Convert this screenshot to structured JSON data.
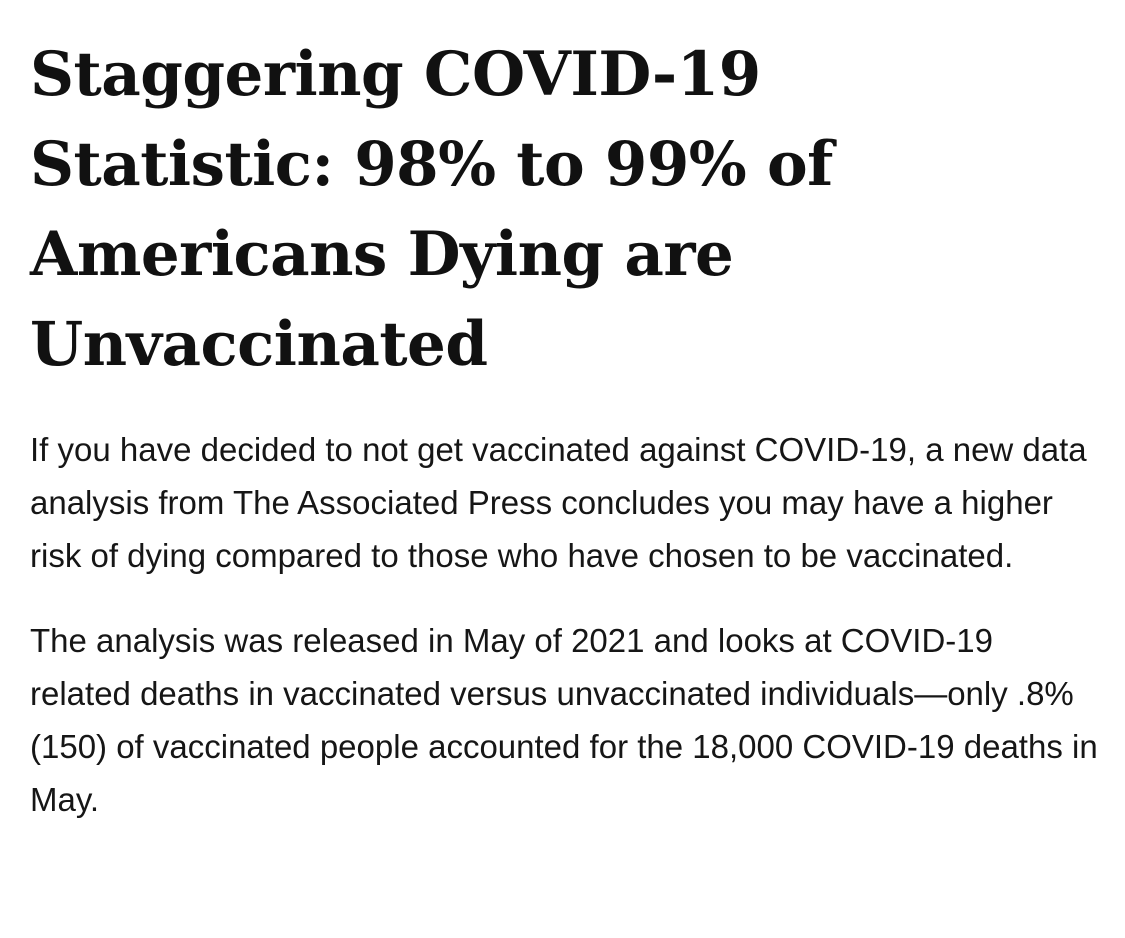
{
  "article": {
    "headline": "Staggering COVID-19 Statistic: 98% to 99% of Americans Dying are Unvaccinated",
    "paragraphs": [
      "If you have decided to not get vaccinated against COVID-19, a new data analysis from The Associated Press concludes you may have a higher risk of dying compared to those who have chosen to be vaccinated.",
      "The analysis was released in May of 2021 and looks at COVID-19 related deaths in vaccinated versus unvaccinated individuals—only .8% (150) of vaccinated people accounted for the 18,000 COVID-19 deaths in May."
    ]
  },
  "colors": {
    "background": "#ffffff",
    "text": "#111111"
  }
}
